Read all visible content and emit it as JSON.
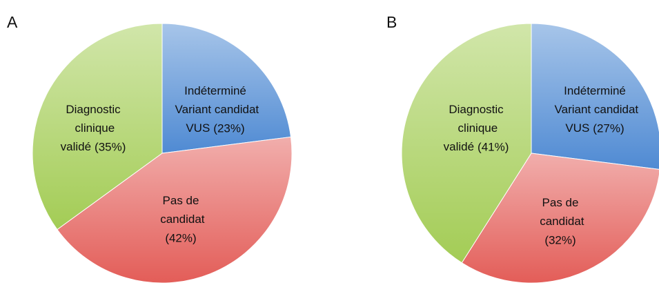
{
  "chart_data": [
    {
      "type": "pie",
      "title": "A",
      "categories": [
        "Indéterminé Variant candidat VUS",
        "Pas de candidat",
        "Diagnostic clinique validé"
      ],
      "values": [
        23,
        42,
        35
      ],
      "value_labels": [
        "(23%)",
        "(42%)",
        "(35%)"
      ],
      "colors": [
        "#4f8ad3",
        "#e35d58",
        "#a3cc55"
      ]
    },
    {
      "type": "pie",
      "title": "B",
      "categories": [
        "Indéterminé Variant candidat VUS",
        "Pas de candidat",
        "Diagnostic clinique validé"
      ],
      "values": [
        27,
        32,
        41
      ],
      "value_labels": [
        "(27%)",
        "(32%)",
        "(41%)"
      ],
      "colors": [
        "#4f8ad3",
        "#e35d58",
        "#a3cc55"
      ]
    }
  ]
}
